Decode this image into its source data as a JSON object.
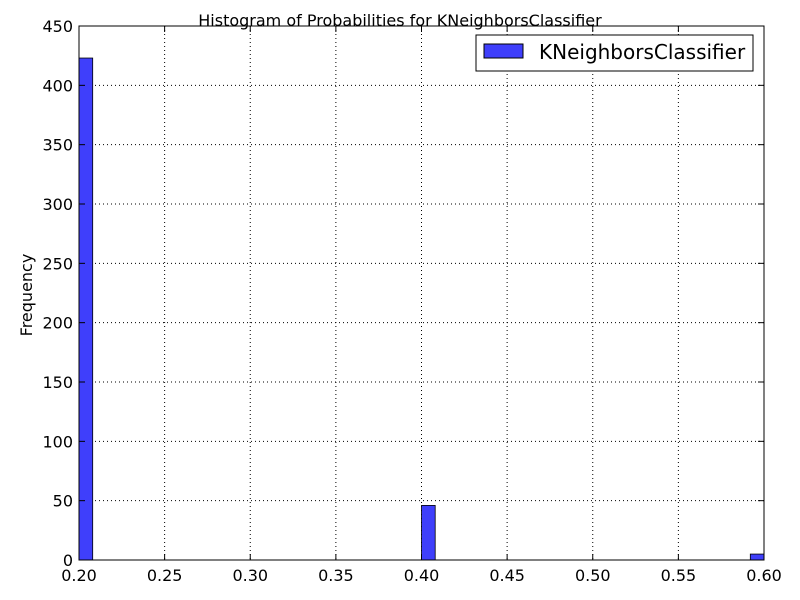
{
  "chart_data": {
    "type": "bar",
    "title": "Histogram of Probabilities for KNeighborsClassifier",
    "xlabel": "",
    "ylabel": "Frequency",
    "xlim": [
      0.2,
      0.6
    ],
    "ylim": [
      0,
      450
    ],
    "x_ticks": [
      "0.20",
      "0.25",
      "0.30",
      "0.35",
      "0.40",
      "0.45",
      "0.50",
      "0.55",
      "0.60"
    ],
    "y_ticks": [
      "0",
      "50",
      "100",
      "150",
      "200",
      "250",
      "300",
      "350",
      "400",
      "450"
    ],
    "grid": true,
    "legend_position": "top-right",
    "bar_color": "#3f3ffb",
    "series": [
      {
        "name": "KNeighborsClassifier",
        "bins": [
          {
            "x_start": 0.2,
            "x_end": 0.208,
            "count": 423
          },
          {
            "x_start": 0.4,
            "x_end": 0.408,
            "count": 46
          },
          {
            "x_start": 0.592,
            "x_end": 0.6,
            "count": 5
          }
        ]
      }
    ]
  }
}
